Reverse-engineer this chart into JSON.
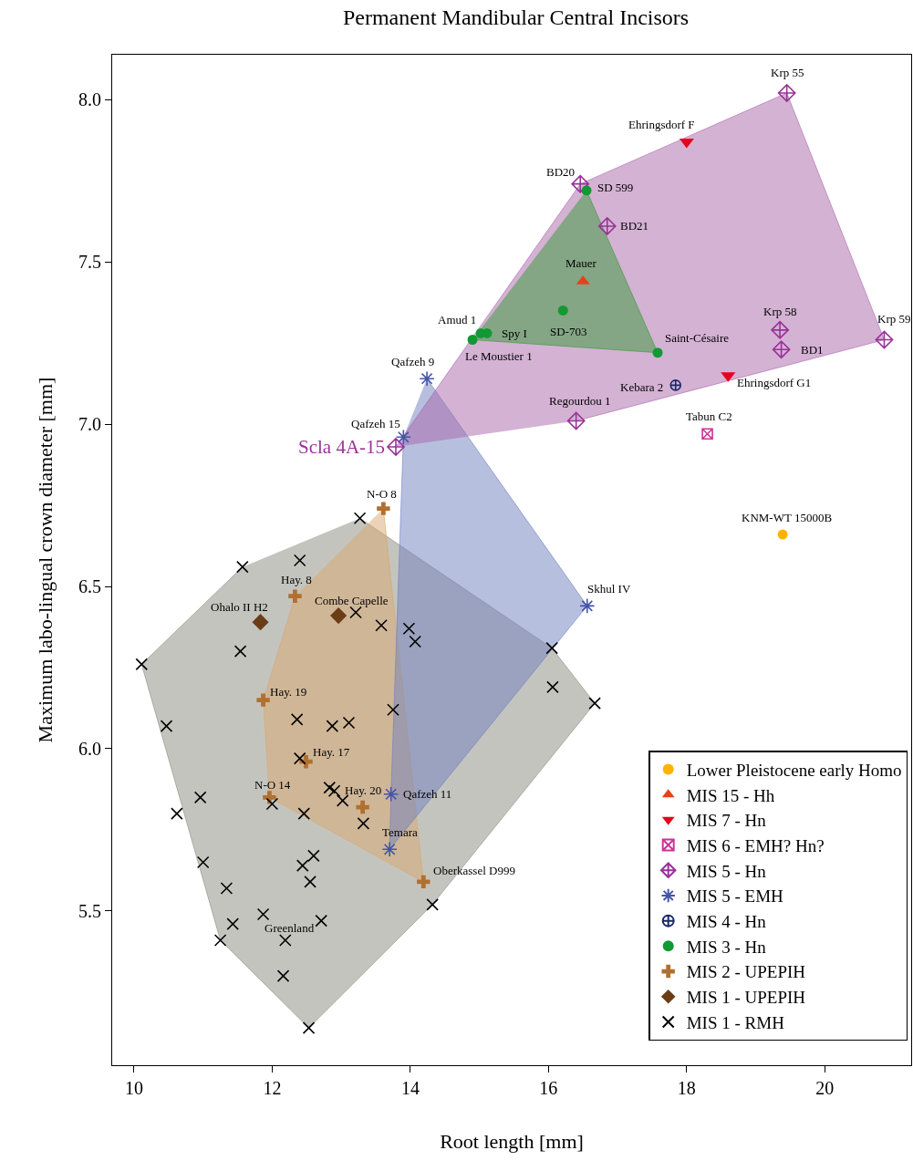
{
  "chart_data": {
    "type": "scatter",
    "title": "Permanent Mandibular Central Incisors",
    "xlabel": "Root length [mm]",
    "ylabel": "Maximum labo-lingual crown diameter [mm]",
    "xlim": [
      9.684,
      21.25
    ],
    "ylim": [
      5.025,
      8.138
    ],
    "xticks": [
      10,
      12,
      14,
      16,
      18,
      20
    ],
    "yticks": [
      {
        "value": 5.5,
        "label": "5.5"
      },
      {
        "value": 6.0,
        "label": "6.0"
      },
      {
        "value": 6.5,
        "label": "6.5"
      },
      {
        "value": 7.0,
        "label": "7.0"
      },
      {
        "value": 7.5,
        "label": "7.5"
      },
      {
        "value": 8.0,
        "label": "8.0"
      }
    ],
    "legend": "bottom right",
    "series": [
      {
        "type": "area",
        "color": "#8a8a80",
        "x": [
          13.27,
          16.05,
          16.67,
          14.32,
          12.53,
          11.25,
          10.11,
          11.57
        ],
        "values": [
          6.71,
          6.31,
          6.14,
          5.52,
          5.14,
          5.41,
          6.26,
          6.56
        ]
      },
      {
        "type": "area",
        "color": "#d9a870",
        "x": [
          13.61,
          14.19,
          11.96,
          11.87,
          12.33
        ],
        "values": [
          6.74,
          5.59,
          5.85,
          6.15,
          6.47
        ]
      },
      {
        "type": "area",
        "color": "#7080c0",
        "x": [
          14.24,
          16.56,
          13.7,
          13.72,
          13.9
        ],
        "values": [
          7.14,
          6.44,
          5.69,
          5.86,
          6.96
        ]
      },
      {
        "type": "area",
        "color": "#aa66aa",
        "x": [
          13.79,
          16.46,
          19.45,
          20.86,
          16.4
        ],
        "values": [
          6.93,
          7.74,
          8.02,
          7.26,
          7.01
        ]
      },
      {
        "type": "area",
        "color": "#339933",
        "x": [
          16.55,
          17.58,
          14.9
        ],
        "values": [
          7.72,
          7.22,
          7.26
        ]
      },
      {
        "name": "Lower Pleistocene early Homo",
        "marker": "circle",
        "color": "#ffb300",
        "x": [
          19.39
        ],
        "values": [
          6.66
        ]
      },
      {
        "name": "MIS 15 - Hh",
        "marker": "triangle",
        "color": "#e8401c",
        "x": [
          16.5
        ],
        "values": [
          7.44
        ]
      },
      {
        "name": "MIS 7 - Hn",
        "marker": "triangle",
        "color": "#e8001c",
        "x": [
          18.0,
          18.6
        ],
        "values": [
          7.87,
          7.15
        ]
      },
      {
        "name": "MIS 6 - EMH? Hn?",
        "marker": "cross",
        "color": "#cc3399",
        "x": [
          18.3
        ],
        "values": [
          6.97
        ]
      },
      {
        "name": "MIS 5 - Hn",
        "marker": "diamond",
        "color": "#993399",
        "x": [
          13.79,
          16.4,
          16.46,
          16.85,
          19.45,
          19.35,
          19.37,
          20.86
        ],
        "values": [
          6.93,
          7.01,
          7.74,
          7.61,
          8.02,
          7.29,
          7.23,
          7.26
        ]
      },
      {
        "name": "MIS 5 - EMH",
        "marker": "cross",
        "color": "#4455aa",
        "x": [
          14.24,
          13.9,
          16.56,
          13.72,
          13.7
        ],
        "values": [
          7.14,
          6.96,
          6.44,
          5.86,
          5.69
        ]
      },
      {
        "name": "MIS 4 - Hn",
        "marker": "cross",
        "color": "#1a2a66",
        "x": [
          17.84
        ],
        "values": [
          7.12
        ]
      },
      {
        "name": "MIS 3 - Hn",
        "marker": "circle",
        "color": "#119933",
        "x": [
          16.55,
          16.21,
          15.02,
          15.11,
          14.9,
          17.58
        ],
        "values": [
          7.72,
          7.35,
          7.28,
          7.28,
          7.26,
          7.22
        ]
      },
      {
        "name": "MIS 2 - UPEPIH",
        "marker": "cross",
        "color": "#b07030",
        "x": [
          13.61,
          12.33,
          11.87,
          12.49,
          11.96,
          13.31,
          14.19
        ],
        "values": [
          6.74,
          6.47,
          6.15,
          5.96,
          5.85,
          5.82,
          5.59
        ]
      },
      {
        "name": "MIS 1 - UPEPIH",
        "marker": "diamond",
        "color": "#6b3d17",
        "x": [
          11.83,
          12.96
        ],
        "values": [
          6.39,
          6.41
        ]
      },
      {
        "name": "MIS 1 - RMH",
        "marker": "cross",
        "color": "#000000",
        "x": [
          10.11,
          11.57,
          12.4,
          13.27,
          11.54,
          13.21,
          13.58,
          13.98,
          14.07,
          10.47,
          12.36,
          12.87,
          13.11,
          13.75,
          12.4,
          16.05,
          16.06,
          16.67,
          10.96,
          10.62,
          12.0,
          12.46,
          12.83,
          12.9,
          13.02,
          13.32,
          11.0,
          11.34,
          11.43,
          11.25,
          11.87,
          12.44,
          12.6,
          12.55,
          12.71,
          12.19,
          12.16,
          12.53,
          14.32
        ],
        "values": [
          6.26,
          6.56,
          6.58,
          6.71,
          6.3,
          6.42,
          6.38,
          6.37,
          6.33,
          6.07,
          6.09,
          6.07,
          6.08,
          6.12,
          5.97,
          6.31,
          6.19,
          6.14,
          5.85,
          5.8,
          5.83,
          5.8,
          5.88,
          5.87,
          5.84,
          5.77,
          5.65,
          5.57,
          5.46,
          5.41,
          5.49,
          5.64,
          5.67,
          5.59,
          5.47,
          5.41,
          5.3,
          5.14,
          5.52
        ]
      }
    ],
    "annotations": [
      {
        "text": "Scla 4A-15",
        "x": 13.79,
        "y": 6.93
      },
      {
        "text": "Qafzeh 15",
        "x": 13.9,
        "y": 6.96
      },
      {
        "text": "Qafzeh 9",
        "x": 14.24,
        "y": 7.14
      },
      {
        "text": "Regourdou 1",
        "x": 16.4,
        "y": 7.01
      },
      {
        "text": "Kebara 2",
        "x": 17.84,
        "y": 7.12
      },
      {
        "text": "Tabun C2",
        "x": 18.3,
        "y": 6.97
      },
      {
        "text": "Ehringsdorf G1",
        "x": 18.6,
        "y": 7.15
      },
      {
        "text": "Ehringsdorf F",
        "x": 18.0,
        "y": 7.87
      },
      {
        "text": "Krp 55",
        "x": 19.45,
        "y": 8.02
      },
      {
        "text": "Krp 58",
        "x": 19.35,
        "y": 7.29
      },
      {
        "text": "BD1",
        "x": 19.37,
        "y": 7.23
      },
      {
        "text": "Krp 59",
        "x": 20.86,
        "y": 7.26
      },
      {
        "text": "BD20",
        "x": 16.46,
        "y": 7.74
      },
      {
        "text": "SD 599",
        "x": 16.55,
        "y": 7.72
      },
      {
        "text": "BD21",
        "x": 16.85,
        "y": 7.61
      },
      {
        "text": "Mauer",
        "x": 16.5,
        "y": 7.44
      },
      {
        "text": "SD-703",
        "x": 16.21,
        "y": 7.35
      },
      {
        "text": "Amud 1",
        "x": 15.02,
        "y": 7.28
      },
      {
        "text": "Spy I",
        "x": 15.11,
        "y": 7.28
      },
      {
        "text": "Le Moustier 1",
        "x": 14.9,
        "y": 7.26
      },
      {
        "text": "Saint-Césaire",
        "x": 17.58,
        "y": 7.22
      },
      {
        "text": "KNM-WT 15000B",
        "x": 19.39,
        "y": 6.66
      },
      {
        "text": "Skhul IV",
        "x": 16.56,
        "y": 6.44
      },
      {
        "text": "N-O 8",
        "x": 13.61,
        "y": 6.74
      },
      {
        "text": "Hay. 8",
        "x": 12.33,
        "y": 6.47
      },
      {
        "text": "Ohalo II H2",
        "x": 11.83,
        "y": 6.39
      },
      {
        "text": "Combe Capelle",
        "x": 12.96,
        "y": 6.41
      },
      {
        "text": "Hay. 19",
        "x": 11.87,
        "y": 6.15
      },
      {
        "text": "Hay. 17",
        "x": 12.49,
        "y": 5.96
      },
      {
        "text": "N-O 14",
        "x": 11.96,
        "y": 5.85
      },
      {
        "text": "Hay. 20",
        "x": 13.31,
        "y": 5.82
      },
      {
        "text": "Qafzeh 11",
        "x": 13.72,
        "y": 5.86
      },
      {
        "text": "Temara",
        "x": 13.7,
        "y": 5.69
      },
      {
        "text": "Oberkassel D999",
        "x": 14.19,
        "y": 5.59
      },
      {
        "text": "Greenland",
        "x": 12.19,
        "y": 5.41
      }
    ]
  }
}
